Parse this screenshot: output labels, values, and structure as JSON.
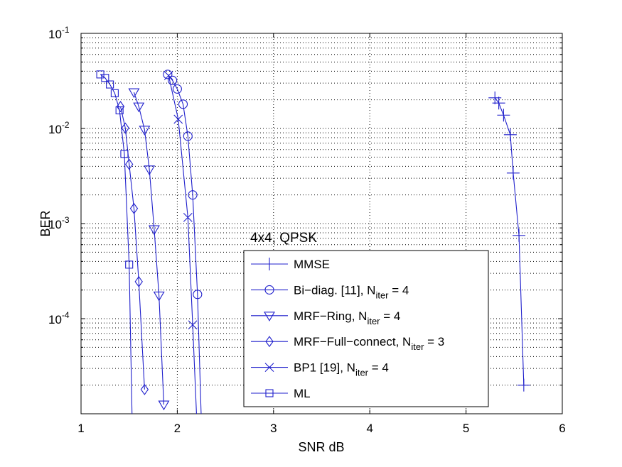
{
  "chart_data": {
    "type": "line",
    "title": "",
    "xlabel": "SNR dB",
    "ylabel": "BER",
    "xlim": [
      1,
      6
    ],
    "ylim": [
      1e-05,
      0.1
    ],
    "yscale": "log",
    "grid": true,
    "legend_position": "bottom-right",
    "x_ticks": [
      "1",
      "2",
      "3",
      "4",
      "5",
      "6"
    ],
    "y_ticks": [
      {
        "base": "10",
        "exp": "-1"
      },
      {
        "base": "10",
        "exp": "-2"
      },
      {
        "base": "10",
        "exp": "-3"
      },
      {
        "base": "10",
        "exp": "-4"
      }
    ],
    "annotation": "4x4, QPSK",
    "line_color": "#1f1fcc",
    "series": [
      {
        "name": "MMSE",
        "label_parts": [
          "MMSE"
        ],
        "marker": "plus",
        "x": [
          5.3,
          5.34,
          5.39,
          5.46,
          5.49,
          5.55,
          5.6
        ],
        "y": [
          0.021,
          0.0185,
          0.0138,
          0.0086,
          0.0034,
          0.00075,
          2e-05
        ]
      },
      {
        "name": "Bi-diag. [11], N_iter = 4",
        "label_parts": [
          "Bi−diag. [11], N",
          "iter",
          " = 4"
        ],
        "marker": "circle",
        "x": [
          1.9,
          1.95,
          2.0,
          2.06,
          2.11,
          2.16,
          2.21,
          2.25
        ],
        "y": [
          0.037,
          0.032,
          0.026,
          0.018,
          0.0083,
          0.002,
          0.00018,
          8.4e-06
        ]
      },
      {
        "name": "MRF-Ring, N_iter = 4",
        "label_parts": [
          "MRF−Ring, N",
          "iter",
          " = 4"
        ],
        "marker": "triangle",
        "x": [
          1.55,
          1.6,
          1.66,
          1.71,
          1.76,
          1.81,
          1.86
        ],
        "y": [
          0.024,
          0.017,
          0.0097,
          0.0037,
          0.00087,
          0.000175,
          1.25e-05
        ]
      },
      {
        "name": "MRF-Full-connect, N_iter = 3",
        "label_parts": [
          "MRF−Full−connect, N",
          "iter",
          " = 3"
        ],
        "marker": "diamond",
        "x": [
          1.41,
          1.46,
          1.5,
          1.55,
          1.6,
          1.66
        ],
        "y": [
          0.017,
          0.0101,
          0.0042,
          0.00144,
          0.000245,
          1.8e-05
        ]
      },
      {
        "name": "BP1 [19], N_iter = 4",
        "label_parts": [
          "BP1 [19], N",
          "iter",
          " = 4"
        ],
        "marker": "x",
        "x": [
          1.91,
          2.01,
          2.11,
          2.16,
          2.2
        ],
        "y": [
          0.036,
          0.0125,
          0.00116,
          8.6e-05,
          9.8e-06
        ]
      },
      {
        "name": "ML",
        "label_parts": [
          "ML"
        ],
        "marker": "square",
        "x": [
          1.2,
          1.25,
          1.3,
          1.35,
          1.4,
          1.45,
          1.5,
          1.53
        ],
        "y": [
          0.037,
          0.034,
          0.029,
          0.0235,
          0.0155,
          0.0054,
          0.00037,
          9.6e-06
        ]
      }
    ]
  }
}
